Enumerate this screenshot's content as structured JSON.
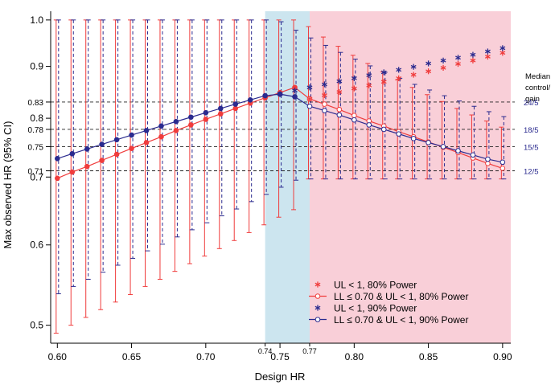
{
  "chart_data": {
    "type": "line",
    "xlabel": "Design HR",
    "ylabel": "Max observed HR (95% CI)",
    "xlim": [
      0.5955,
      0.9055
    ],
    "ylim": [
      0.48,
      1.02
    ],
    "y_scale": "log",
    "x_ticks": [
      {
        "v": 0.6,
        "label": "0.60"
      },
      {
        "v": 0.65,
        "label": "0.65"
      },
      {
        "v": 0.7,
        "label": "0.70"
      },
      {
        "v": 0.75,
        "label": "0.75"
      },
      {
        "v": 0.8,
        "label": "0.80"
      },
      {
        "v": 0.85,
        "label": "0.85"
      },
      {
        "v": 0.9,
        "label": "0.90"
      }
    ],
    "x_minor_labels": [
      {
        "v": 0.74,
        "label": "0.74"
      },
      {
        "v": 0.77,
        "label": "0.77"
      }
    ],
    "y_ticks": [
      {
        "v": 0.5,
        "label": "0.5"
      },
      {
        "v": 0.6,
        "label": "0.6"
      },
      {
        "v": 0.7,
        "label": "0.7"
      },
      {
        "v": 0.71,
        "label": "0.71"
      },
      {
        "v": 0.75,
        "label": "0.75"
      },
      {
        "v": 0.78,
        "label": "0.78"
      },
      {
        "v": 0.8,
        "label": "0.8"
      },
      {
        "v": 0.83,
        "label": "0.83"
      },
      {
        "v": 0.9,
        "label": "0.9"
      },
      {
        "v": 1.0,
        "label": "1.0"
      }
    ],
    "reference_lines": [
      {
        "y": 0.83,
        "right_label": "24/5"
      },
      {
        "y": 0.78,
        "right_label": "18/5"
      },
      {
        "y": 0.75,
        "right_label": "15/5"
      },
      {
        "y": 0.71,
        "right_label": "12/5"
      }
    ],
    "right_title": [
      "Median",
      "control/",
      "gain"
    ],
    "regions": [
      {
        "x0": 0.74,
        "x1": 0.77,
        "color": "#cce5ef"
      },
      {
        "x0": 0.77,
        "x1": 0.9055,
        "color": "#f9cfd8"
      }
    ],
    "colors": {
      "red": "#f03c3c",
      "blue": "#2b2b8f"
    },
    "x": [
      0.6,
      0.61,
      0.62,
      0.63,
      0.64,
      0.65,
      0.66,
      0.67,
      0.68,
      0.69,
      0.7,
      0.71,
      0.72,
      0.73,
      0.74,
      0.75,
      0.76,
      0.77,
      0.78,
      0.79,
      0.8,
      0.81,
      0.82,
      0.83,
      0.84,
      0.85,
      0.86,
      0.87,
      0.88,
      0.89,
      0.9
    ],
    "series": [
      {
        "name": "LL ≤ 0.70 & UL < 1, 80% Power",
        "color": "#f03c3c",
        "values": [
          0.698,
          0.708,
          0.717,
          0.727,
          0.737,
          0.747,
          0.757,
          0.767,
          0.778,
          0.788,
          0.798,
          0.808,
          0.818,
          0.828,
          0.838,
          0.848,
          0.858,
          0.836,
          0.826,
          0.816,
          0.805,
          0.795,
          0.786,
          0.776,
          0.767,
          0.758,
          0.749,
          0.74,
          0.731,
          0.722,
          0.714
        ],
        "ci_lower": [
          0.491,
          0.5,
          0.509,
          0.518,
          0.527,
          0.536,
          0.546,
          0.555,
          0.565,
          0.575,
          0.585,
          0.595,
          0.606,
          0.617,
          0.628,
          0.639,
          0.65,
          0.697,
          0.697,
          0.697,
          0.697,
          0.697,
          0.697,
          0.697,
          0.697,
          0.697,
          0.697,
          0.697,
          0.697,
          0.697,
          0.697
        ],
        "ci_upper": [
          1.0,
          1.0,
          1.0,
          1.0,
          1.0,
          1.0,
          1.0,
          1.0,
          1.0,
          1.0,
          1.0,
          1.0,
          1.0,
          1.0,
          1.0,
          1.0,
          1.0,
          0.985,
          0.962,
          0.942,
          0.923,
          0.906,
          0.889,
          0.873,
          0.858,
          0.844,
          0.831,
          0.818,
          0.806,
          0.795,
          0.784
        ]
      },
      {
        "name": "LL ≤ 0.70 & UL < 1, 90% Power",
        "color": "#2b2b8f",
        "values": [
          0.73,
          0.738,
          0.746,
          0.754,
          0.762,
          0.77,
          0.778,
          0.786,
          0.794,
          0.802,
          0.81,
          0.818,
          0.826,
          0.834,
          0.842,
          0.845,
          0.84,
          0.822,
          0.814,
          0.806,
          0.797,
          0.788,
          0.78,
          0.772,
          0.764,
          0.757,
          0.75,
          0.743,
          0.736,
          0.729,
          0.724
        ],
        "ci_lower": [
          0.537,
          0.546,
          0.555,
          0.564,
          0.573,
          0.582,
          0.592,
          0.601,
          0.611,
          0.621,
          0.631,
          0.641,
          0.651,
          0.662,
          0.673,
          0.684,
          0.695,
          0.697,
          0.697,
          0.697,
          0.697,
          0.697,
          0.697,
          0.697,
          0.697,
          0.697,
          0.697,
          0.697,
          0.697,
          0.697,
          0.697
        ],
        "ci_upper": [
          1.0,
          1.0,
          1.0,
          1.0,
          1.0,
          1.0,
          1.0,
          1.0,
          1.0,
          1.0,
          1.0,
          1.0,
          1.0,
          1.0,
          1.0,
          0.996,
          0.977,
          0.96,
          0.944,
          0.929,
          0.915,
          0.901,
          0.888,
          0.876,
          0.864,
          0.853,
          0.842,
          0.832,
          0.822,
          0.812,
          0.803
        ]
      },
      {
        "name": "UL < 1, 80% Power",
        "color": "#f03c3c",
        "x": [
          0.77,
          0.78,
          0.79,
          0.8,
          0.81,
          0.82,
          0.83,
          0.84,
          0.85,
          0.86,
          0.87,
          0.88,
          0.89,
          0.9
        ],
        "values": [
          0.836,
          0.843,
          0.849,
          0.856,
          0.862,
          0.869,
          0.876,
          0.883,
          0.89,
          0.897,
          0.905,
          0.912,
          0.92,
          0.928
        ]
      },
      {
        "name": "UL < 1, 90% Power",
        "color": "#2b2b8f",
        "x": [
          0.75,
          0.76,
          0.77,
          0.78,
          0.79,
          0.8,
          0.81,
          0.82,
          0.83,
          0.84,
          0.85,
          0.86,
          0.87,
          0.88,
          0.89,
          0.9
        ],
        "values": [
          0.845,
          0.852,
          0.858,
          0.864,
          0.87,
          0.876,
          0.882,
          0.888,
          0.893,
          0.899,
          0.906,
          0.912,
          0.918,
          0.924,
          0.931,
          0.938
        ]
      }
    ],
    "legend": {
      "position": "bottom-right",
      "entries": [
        {
          "label": "UL < 1, 80% Power",
          "color": "#f03c3c",
          "marker": "asterisk",
          "line": false
        },
        {
          "label": "LL ≤ 0.70 & UL < 1, 80% Power",
          "color": "#f03c3c",
          "marker": "circle",
          "line": true
        },
        {
          "label": "UL < 1, 90% Power",
          "color": "#2b2b8f",
          "marker": "asterisk",
          "line": false
        },
        {
          "label": "LL ≤ 0.70 & UL < 1, 90% Power",
          "color": "#2b2b8f",
          "marker": "circle",
          "line": true
        }
      ]
    },
    "grid": false
  }
}
